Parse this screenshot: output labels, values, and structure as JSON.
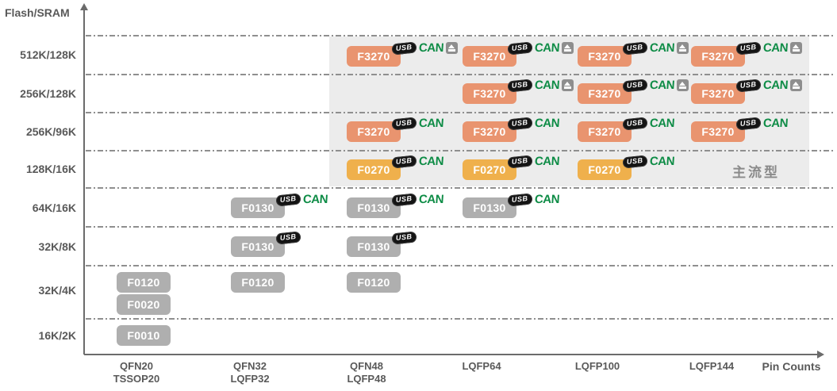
{
  "title_labels": {
    "y_axis": "Flash/SRAM",
    "x_axis": "Pin Counts"
  },
  "badge_labels": {
    "usb": "USB",
    "can": "CAN"
  },
  "colors": {
    "orange": "#e9946f",
    "amber": "#efb04c",
    "gray": "#afafaf",
    "region_bg": "#ececec",
    "region_label": "#8a8a8a",
    "can_green": "#0e8c46",
    "usb_bg": "#141414",
    "axis": "#6b6b6b",
    "label": "#595959"
  },
  "chart_data": {
    "type": "scatter",
    "title": "",
    "ylabel": "Flash/SRAM",
    "xlabel": "Pin Counts",
    "grid": "dashed-horizontal",
    "y_categories": [
      "512K/128K",
      "256K/128K",
      "256K/96K",
      "128K/16K",
      "64K/16K",
      "32K/8K",
      "32K/4K",
      "16K/2K"
    ],
    "x_categories": [
      [
        "QFN20",
        "TSSOP20"
      ],
      [
        "QFN32",
        "LQFP32"
      ],
      [
        "QFN48",
        "LQFP48"
      ],
      [
        "LQFP64"
      ],
      [
        "LQFP100"
      ],
      [
        "LQFP144"
      ]
    ],
    "highlight_region": {
      "label": "主流型",
      "rows": [
        "512K/128K",
        "256K/128K",
        "256K/96K",
        "128K/16K"
      ],
      "cols": [
        "QFN48/LQFP48",
        "LQFP64",
        "LQFP100",
        "LQFP144"
      ]
    },
    "points": [
      {
        "part": "F3270",
        "row": 0,
        "col": 2,
        "color": "orange",
        "stack": 0,
        "badges": [
          "usb",
          "can",
          "connector"
        ]
      },
      {
        "part": "F3270",
        "row": 0,
        "col": 3,
        "color": "orange",
        "stack": 0,
        "badges": [
          "usb",
          "can",
          "connector"
        ]
      },
      {
        "part": "F3270",
        "row": 0,
        "col": 4,
        "color": "orange",
        "stack": 0,
        "badges": [
          "usb",
          "can",
          "connector"
        ]
      },
      {
        "part": "F3270",
        "row": 0,
        "col": 5,
        "color": "orange",
        "stack": 0,
        "badges": [
          "usb",
          "can",
          "connector"
        ]
      },
      {
        "part": "F3270",
        "row": 1,
        "col": 3,
        "color": "orange",
        "stack": 0,
        "badges": [
          "usb",
          "can",
          "connector"
        ]
      },
      {
        "part": "F3270",
        "row": 1,
        "col": 4,
        "color": "orange",
        "stack": 0,
        "badges": [
          "usb",
          "can",
          "connector"
        ]
      },
      {
        "part": "F3270",
        "row": 1,
        "col": 5,
        "color": "orange",
        "stack": 0,
        "badges": [
          "usb",
          "can",
          "connector"
        ]
      },
      {
        "part": "F3270",
        "row": 2,
        "col": 2,
        "color": "orange",
        "stack": 0,
        "badges": [
          "usb",
          "can"
        ]
      },
      {
        "part": "F3270",
        "row": 2,
        "col": 3,
        "color": "orange",
        "stack": 0,
        "badges": [
          "usb",
          "can"
        ]
      },
      {
        "part": "F3270",
        "row": 2,
        "col": 4,
        "color": "orange",
        "stack": 0,
        "badges": [
          "usb",
          "can"
        ]
      },
      {
        "part": "F3270",
        "row": 2,
        "col": 5,
        "color": "orange",
        "stack": 0,
        "badges": [
          "usb",
          "can"
        ]
      },
      {
        "part": "F0270",
        "row": 3,
        "col": 2,
        "color": "amber",
        "stack": 0,
        "badges": [
          "usb",
          "can"
        ]
      },
      {
        "part": "F0270",
        "row": 3,
        "col": 3,
        "color": "amber",
        "stack": 0,
        "badges": [
          "usb",
          "can"
        ]
      },
      {
        "part": "F0270",
        "row": 3,
        "col": 4,
        "color": "amber",
        "stack": 0,
        "badges": [
          "usb",
          "can"
        ]
      },
      {
        "part": "F0130",
        "row": 4,
        "col": 1,
        "color": "gray",
        "stack": 0,
        "badges": [
          "usb",
          "can"
        ]
      },
      {
        "part": "F0130",
        "row": 4,
        "col": 2,
        "color": "gray",
        "stack": 0,
        "badges": [
          "usb",
          "can"
        ]
      },
      {
        "part": "F0130",
        "row": 4,
        "col": 3,
        "color": "gray",
        "stack": 0,
        "badges": [
          "usb",
          "can"
        ]
      },
      {
        "part": "F0130",
        "row": 5,
        "col": 1,
        "color": "gray",
        "stack": 0,
        "badges": [
          "usb"
        ]
      },
      {
        "part": "F0130",
        "row": 5,
        "col": 2,
        "color": "gray",
        "stack": 0,
        "badges": [
          "usb"
        ]
      },
      {
        "part": "F0120",
        "row": 6,
        "col": 0,
        "color": "gray",
        "stack": 0,
        "badges": []
      },
      {
        "part": "F0120",
        "row": 6,
        "col": 1,
        "color": "gray",
        "stack": 0,
        "badges": []
      },
      {
        "part": "F0120",
        "row": 6,
        "col": 2,
        "color": "gray",
        "stack": 0,
        "badges": []
      },
      {
        "part": "F0020",
        "row": 6,
        "col": 0,
        "color": "gray",
        "stack": 1,
        "badges": []
      },
      {
        "part": "F0010",
        "row": 7,
        "col": 0,
        "color": "gray",
        "stack": 0,
        "badges": []
      }
    ]
  }
}
